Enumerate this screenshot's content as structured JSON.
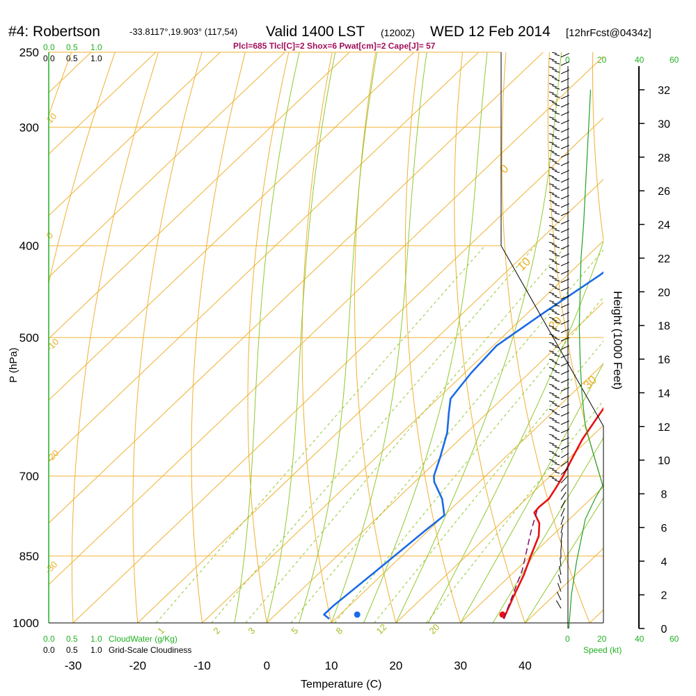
{
  "header": {
    "station": "#4: Robertson",
    "coords": "-33.8117°,19.903° (117,54)",
    "valid": "Valid 1400 LST",
    "utc": "(1200Z)",
    "date": "WED 12 Feb 2014",
    "forecast": "[12hrFcst@0434z]",
    "indices": "Plcl=685 Tlcl[C]=2 Shox=6 Pwat[cm]=2 Cape[J]= 57"
  },
  "scales": {
    "cloudwater_top": [
      "0.0",
      "0.5",
      "1.0"
    ],
    "cloudiness_top": [
      "0.0",
      "0.5",
      "1.0"
    ],
    "cloudwater_bottom": [
      "0.0",
      "0.5",
      "1.0"
    ],
    "cloudwater_label": "CloudWater (g/Kg)",
    "cloudiness_bottom": [
      "0.0",
      "0.5",
      "1.0"
    ],
    "cloudiness_label": "Grid-Scale Cloudiness",
    "speed_ticks": [
      "0",
      "20",
      "40",
      "60"
    ],
    "speed_label": "Speed (kt)"
  },
  "chart_data": {
    "type": "line",
    "xlabel": "Temperature (C)",
    "ylabel": "P (hPa)",
    "y2label": "Height (1000 Feet)",
    "x_ticks": [
      -30,
      -20,
      -10,
      0,
      10,
      20,
      30,
      40
    ],
    "p_ticks": [
      250,
      300,
      400,
      500,
      700,
      850,
      1000
    ],
    "height_ticks": [
      0,
      2,
      4,
      6,
      8,
      10,
      12,
      14,
      16,
      18,
      20,
      22,
      24,
      26,
      28,
      30,
      32
    ],
    "xlim": [
      -34,
      49
    ],
    "plim": [
      250,
      1000
    ],
    "log_pressure": true,
    "isotherm_labels": [
      {
        "value": "10",
        "p": 300
      },
      {
        "value": "0",
        "p": 400
      },
      {
        "value": "-10",
        "p": 510
      },
      {
        "value": "-20",
        "p": 700
      },
      {
        "value": "-30",
        "p": 870
      },
      {
        "value": "0",
        "p": 345
      },
      {
        "value": "10",
        "p": 430
      },
      {
        "value": "20",
        "p": 520
      },
      {
        "value": "30",
        "p": 615
      }
    ],
    "mixing_ratio_labels": [
      "1",
      "2",
      "3",
      "5",
      "8",
      "12",
      "20"
    ],
    "series": [
      {
        "name": "Temperature",
        "color": "#e81010",
        "points": [
          [
            36,
            990
          ],
          [
            34,
            940
          ],
          [
            32,
            890
          ],
          [
            30,
            850
          ],
          [
            28,
            810
          ],
          [
            26,
            785
          ],
          [
            23.5,
            765
          ],
          [
            23.3,
            755
          ],
          [
            23.5,
            740
          ],
          [
            22.8,
            720
          ],
          [
            22,
            700
          ],
          [
            20.5,
            670
          ],
          [
            19,
            640
          ],
          [
            17.5,
            600
          ],
          [
            16,
            560
          ],
          [
            14.5,
            520
          ],
          [
            13,
            480
          ],
          [
            11,
            440
          ],
          [
            9,
            400
          ],
          [
            7,
            360
          ],
          [
            5,
            330
          ],
          [
            3.5,
            300
          ],
          [
            2,
            275
          ],
          [
            1,
            260
          ]
        ],
        "surface": [
          36.5,
          990
        ]
      },
      {
        "name": "Dewpoint",
        "color": "#1a6ae8",
        "points": [
          [
            9,
            990
          ],
          [
            7.5,
            980
          ],
          [
            7.5,
            960
          ],
          [
            8,
            920
          ],
          [
            8.5,
            880
          ],
          [
            9,
            840
          ],
          [
            9.5,
            800
          ],
          [
            10,
            770
          ],
          [
            7,
            740
          ],
          [
            3,
            710
          ],
          [
            2,
            700
          ],
          [
            0,
            670
          ],
          [
            -3,
            630
          ],
          [
            -6,
            600
          ],
          [
            -8,
            580
          ],
          [
            -9,
            545
          ],
          [
            -9.5,
            510
          ],
          [
            -7.5,
            470
          ],
          [
            -5,
            430
          ],
          [
            -4,
            410
          ],
          [
            -3,
            390
          ],
          [
            -3,
            370
          ],
          [
            -5,
            350
          ],
          [
            -8,
            330
          ],
          [
            -13,
            310
          ],
          [
            -14,
            300
          ],
          [
            -13.5,
            280
          ],
          [
            -12,
            265
          ],
          [
            -11,
            258
          ]
        ],
        "surface": [
          14,
          990
        ]
      },
      {
        "name": "Parcel",
        "color": "#7a1060",
        "dashed": true,
        "points": [
          [
            36,
            990
          ],
          [
            31,
            880
          ],
          [
            26,
            800
          ],
          [
            23.5,
            760
          ]
        ]
      }
    ],
    "height_profile_kt": [
      [
        13,
        32
      ],
      [
        12,
        30
      ],
      [
        11,
        28
      ],
      [
        10,
        26
      ],
      [
        9,
        24
      ],
      [
        7.5,
        22
      ],
      [
        7,
        20
      ],
      [
        6.5,
        18
      ],
      [
        7,
        16
      ],
      [
        8,
        14
      ],
      [
        10,
        12
      ],
      [
        20,
        8.5
      ],
      [
        16,
        7.8
      ],
      [
        10,
        6.5
      ],
      [
        5,
        4
      ],
      [
        2,
        2
      ],
      [
        0.5,
        0
      ]
    ]
  }
}
